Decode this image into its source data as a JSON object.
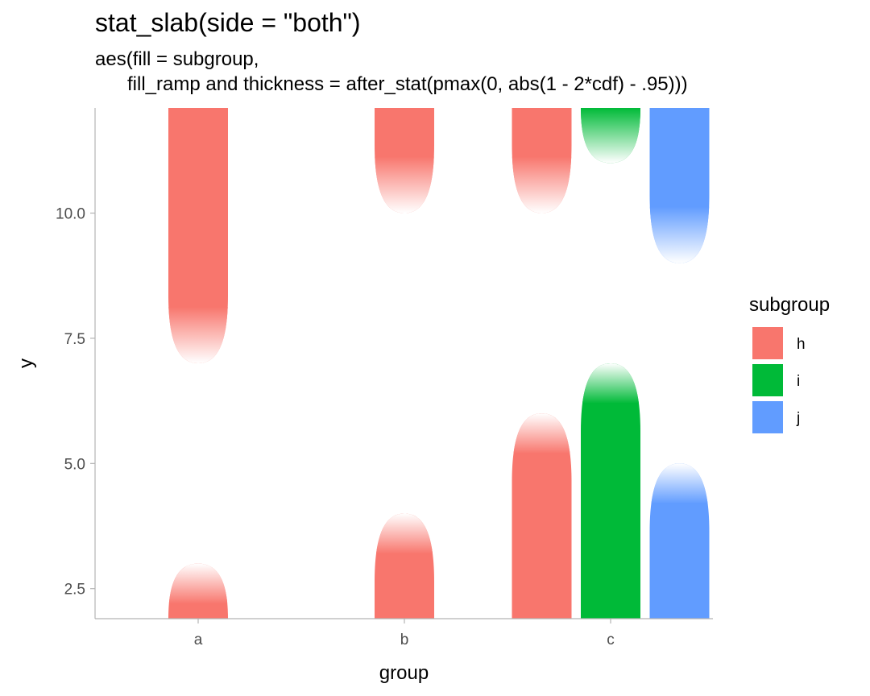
{
  "title": "stat_slab(side = \"both\")",
  "subtitle": "aes(fill = subgroup,\n      fill_ramp and thickness = after_stat(pmax(0, abs(1 - 2*cdf) - .95)))",
  "colors": {
    "h": "#F8766D",
    "i": "#00BA38",
    "j": "#619CFF",
    "axis": "#b3b3b3",
    "tick_text": "#4d4d4d"
  },
  "chart_data": {
    "type": "area",
    "xlabel": "group",
    "ylabel": "y",
    "categories": [
      "a",
      "b",
      "c"
    ],
    "ylim": [
      1.9,
      12.1
    ],
    "yticks": [
      2.5,
      5.0,
      7.5,
      10.0
    ],
    "ytick_labels": [
      "2.5",
      "5.0",
      "7.5",
      "10.0"
    ],
    "legend": {
      "title": "subgroup",
      "position": "right",
      "entries": [
        "h",
        "i",
        "j"
      ]
    },
    "series": [
      {
        "name": "h",
        "category": "a",
        "upper_start": 7.0,
        "lower_end": 3.0
      },
      {
        "name": "h",
        "category": "b",
        "upper_start": 10.0,
        "lower_end": 4.0
      },
      {
        "name": "h",
        "category": "c",
        "upper_start": 10.0,
        "lower_end": 6.0
      },
      {
        "name": "i",
        "category": "c",
        "upper_start": 11.0,
        "lower_end": 7.0
      },
      {
        "name": "j",
        "category": "c",
        "upper_start": 9.0,
        "lower_end": 5.0
      }
    ]
  }
}
